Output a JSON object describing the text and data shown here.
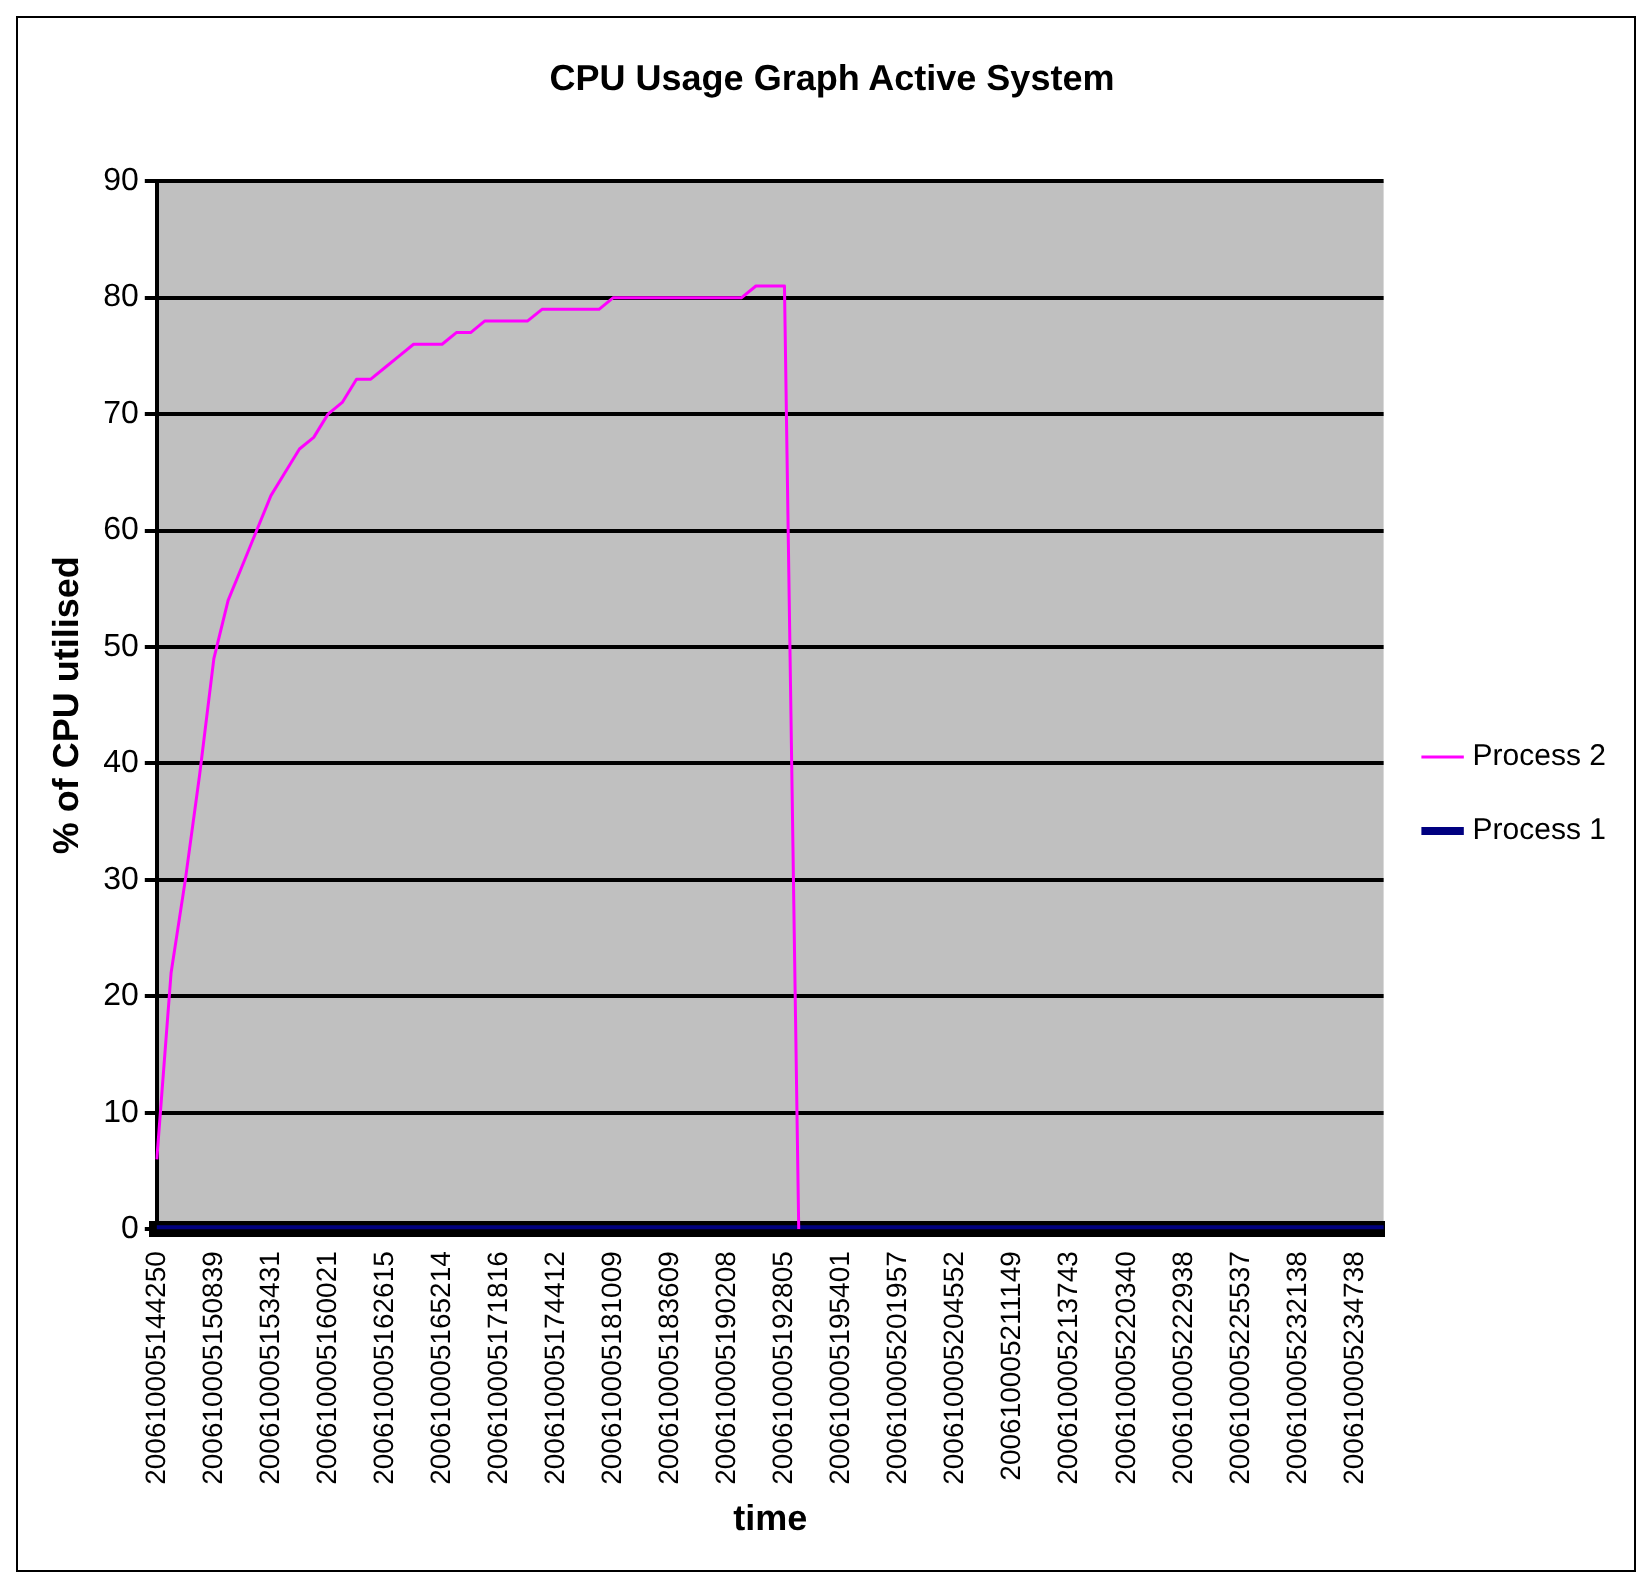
{
  "chart_data": {
    "type": "line",
    "title": "CPU Usage Graph Active System",
    "xlabel": "time",
    "ylabel": "% of CPU utilised",
    "categories": [
      "200610005144250",
      null,
      null,
      null,
      "200610005150839",
      null,
      null,
      null,
      "200610005153431",
      null,
      null,
      null,
      "200610005160021",
      null,
      null,
      null,
      "200610005162615",
      null,
      null,
      null,
      "200610005165214",
      null,
      null,
      null,
      "200610005171816",
      null,
      null,
      null,
      "200610005174412",
      null,
      null,
      null,
      "200610005181009",
      null,
      null,
      null,
      "200610005183609",
      null,
      null,
      null,
      "200610005190208",
      null,
      null,
      null,
      "200610005192805",
      null,
      null,
      null,
      "200610005195401",
      null,
      null,
      null,
      "200610005201957",
      null,
      null,
      null,
      "200610005204552",
      null,
      null,
      null,
      "200610005211149",
      null,
      null,
      null,
      "200610005213743",
      null,
      null,
      null,
      "200610005220340",
      null,
      null,
      null,
      "200610005222938",
      null,
      null,
      null,
      "200610005225537",
      null,
      null,
      null,
      "200610005232138",
      null,
      null,
      null,
      "200610005234738",
      null,
      null
    ],
    "series": [
      {
        "name": "Process 1",
        "color": "#000080",
        "values": [
          0,
          0,
          0,
          0,
          0,
          0,
          0,
          0,
          0,
          0,
          0,
          0,
          0,
          0,
          0,
          0,
          0,
          0,
          0,
          0,
          0,
          0,
          0,
          0,
          0,
          0,
          0,
          0,
          0,
          0,
          0,
          0,
          0,
          0,
          0,
          0,
          0,
          0,
          0,
          0,
          0,
          0,
          0,
          0,
          0,
          0,
          0,
          0,
          0,
          0,
          0,
          0,
          0,
          0,
          0,
          0,
          0,
          0,
          0,
          0,
          0,
          0,
          0,
          0,
          0,
          0,
          0,
          0,
          0,
          0,
          0,
          0,
          0,
          0,
          0,
          0,
          0,
          0,
          0,
          0,
          0,
          0,
          0,
          0,
          0,
          0,
          0
        ]
      },
      {
        "name": "Process 2",
        "color": "#ff00ff",
        "values": [
          6,
          22,
          30,
          39,
          49,
          54,
          57,
          60,
          63,
          65,
          67,
          68,
          70,
          71,
          73,
          73,
          74,
          75,
          76,
          76,
          76,
          77,
          77,
          78,
          78,
          78,
          78,
          79,
          79,
          79,
          79,
          79,
          80,
          80,
          80,
          80,
          80,
          80,
          80,
          80,
          80,
          80,
          81,
          81,
          81,
          0,
          null,
          null,
          null,
          null,
          null,
          null,
          null,
          null,
          null,
          null,
          null,
          null,
          null,
          null,
          null,
          null,
          null,
          null,
          null,
          null,
          null,
          null,
          null,
          null,
          null,
          null,
          null,
          null,
          null,
          null,
          null,
          null,
          null,
          null,
          null,
          null,
          null,
          null,
          null,
          null,
          null
        ]
      }
    ],
    "ylim": [
      0,
      90
    ],
    "yticks": [
      0,
      10,
      20,
      30,
      40,
      50,
      60,
      70,
      80,
      90
    ],
    "grid": "y",
    "legend": "right",
    "marker": "none",
    "line_style": "solid"
  }
}
